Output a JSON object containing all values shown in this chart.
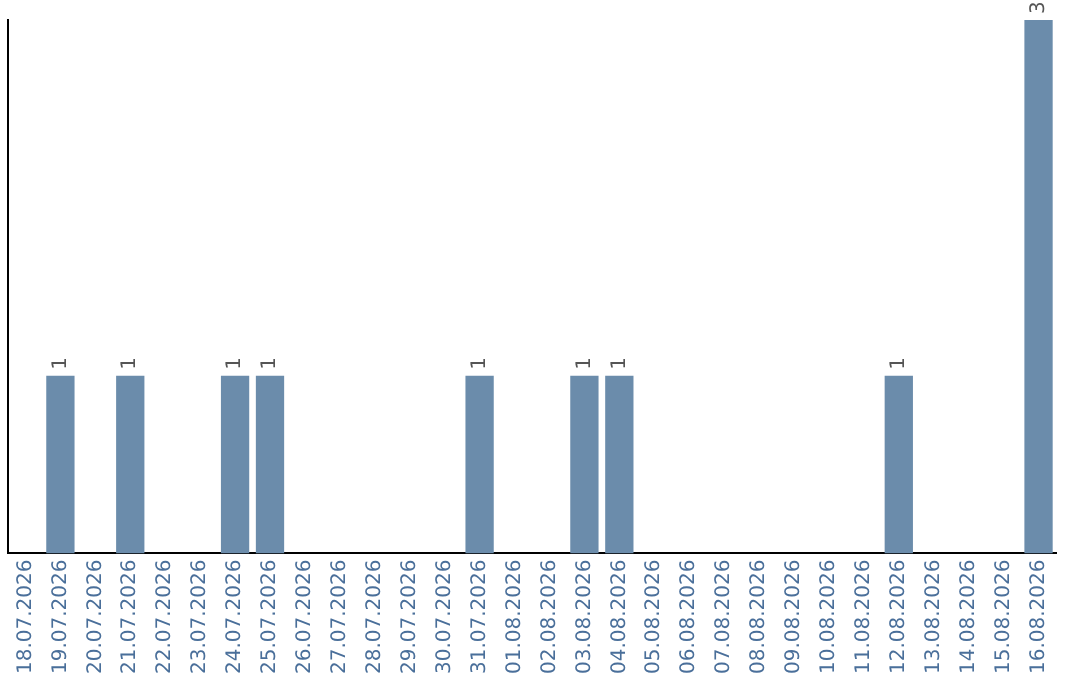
{
  "chart_data": {
    "type": "bar",
    "categories": [
      "18.07.2026",
      "19.07.2026",
      "20.07.2026",
      "21.07.2026",
      "22.07.2026",
      "23.07.2026",
      "24.07.2026",
      "25.07.2026",
      "26.07.2026",
      "27.07.2026",
      "28.07.2026",
      "29.07.2026",
      "30.07.2026",
      "31.07.2026",
      "01.08.2026",
      "02.08.2026",
      "03.08.2026",
      "04.08.2026",
      "05.08.2026",
      "06.08.2026",
      "07.08.2026",
      "08.08.2026",
      "09.08.2026",
      "10.08.2026",
      "11.08.2026",
      "12.08.2026",
      "13.08.2026",
      "14.08.2026",
      "15.08.2026",
      "16.08.2026"
    ],
    "values": [
      0,
      1,
      0,
      1,
      0,
      0,
      1,
      1,
      0,
      0,
      0,
      0,
      0,
      1,
      0,
      0,
      1,
      1,
      0,
      0,
      0,
      0,
      0,
      0,
      0,
      1,
      0,
      0,
      0,
      3
    ],
    "value_labels": [
      null,
      "1",
      null,
      "1",
      null,
      null,
      "1",
      "1",
      null,
      null,
      null,
      null,
      null,
      "1",
      null,
      null,
      "1",
      "1",
      null,
      null,
      null,
      null,
      null,
      null,
      null,
      "1",
      null,
      null,
      null,
      "3"
    ],
    "color": "#6b8cab",
    "tick_labels": "x",
    "grid": false,
    "legend": false
  }
}
